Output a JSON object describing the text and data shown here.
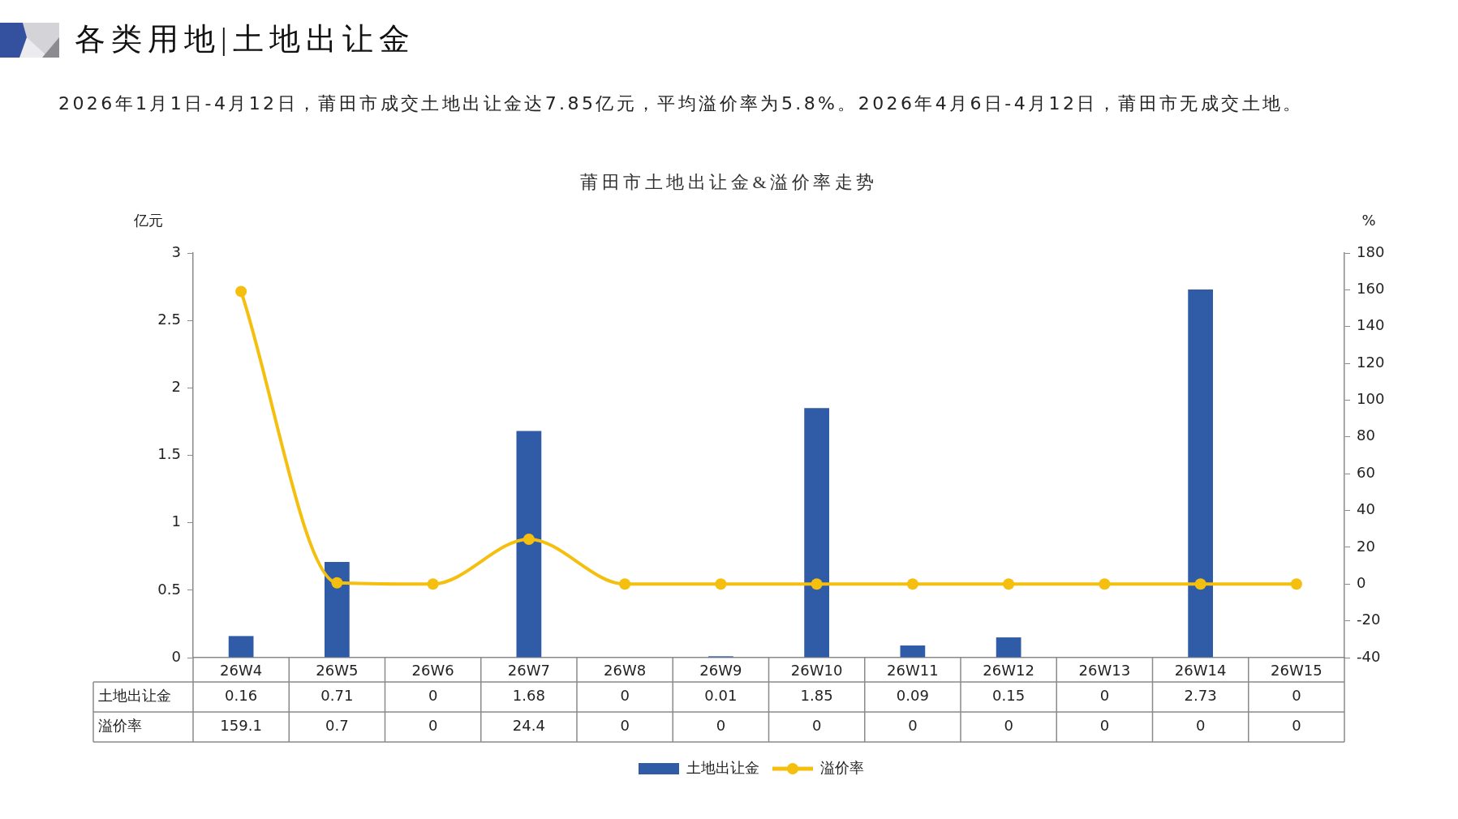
{
  "chart_data": {
    "type": "bar",
    "title": "各类用地|土地出让金",
    "subtitle": "2026年1月1日-4月12日，莆田市成交土地出让金达7.85亿元，平均溢价率为5.8%。2026年4月6日-4月12日，莆田市无成交土地。",
    "annotations": [
      "莆田市土地出让金&溢价率走势"
    ],
    "ylabel": "亿元",
    "y2label": "%",
    "categories": [
      "26W4",
      "26W5",
      "26W6",
      "26W7",
      "26W8",
      "26W9",
      "26W10",
      "26W11",
      "26W12",
      "26W13",
      "26W14",
      "26W15"
    ],
    "series": [
      {
        "name": "土地出让金",
        "color": "#2f5ba7",
        "values": [
          0.16,
          0.71,
          0,
          1.68,
          0,
          0.01,
          1.85,
          0.09,
          0.15,
          0,
          2.73,
          0
        ]
      },
      {
        "name": "溢价率",
        "type": "line",
        "axis": "y2",
        "color": "#f5bf0f",
        "values": [
          159.1,
          0.7,
          0,
          24.4,
          0,
          0,
          0,
          0,
          0,
          0,
          0,
          0
        ]
      }
    ],
    "ylim": [
      0,
      3
    ],
    "yticks": [
      0,
      0.5,
      1,
      1.5,
      2,
      2.5,
      3
    ],
    "y2lim": [
      -40,
      180
    ],
    "y2ticks": [
      -40,
      -20,
      0,
      20,
      40,
      60,
      80,
      100,
      120,
      140,
      160,
      180
    ],
    "grid": false,
    "legend": "bottom",
    "marker": "circle",
    "line_style": "solid",
    "data_labels": true
  }
}
